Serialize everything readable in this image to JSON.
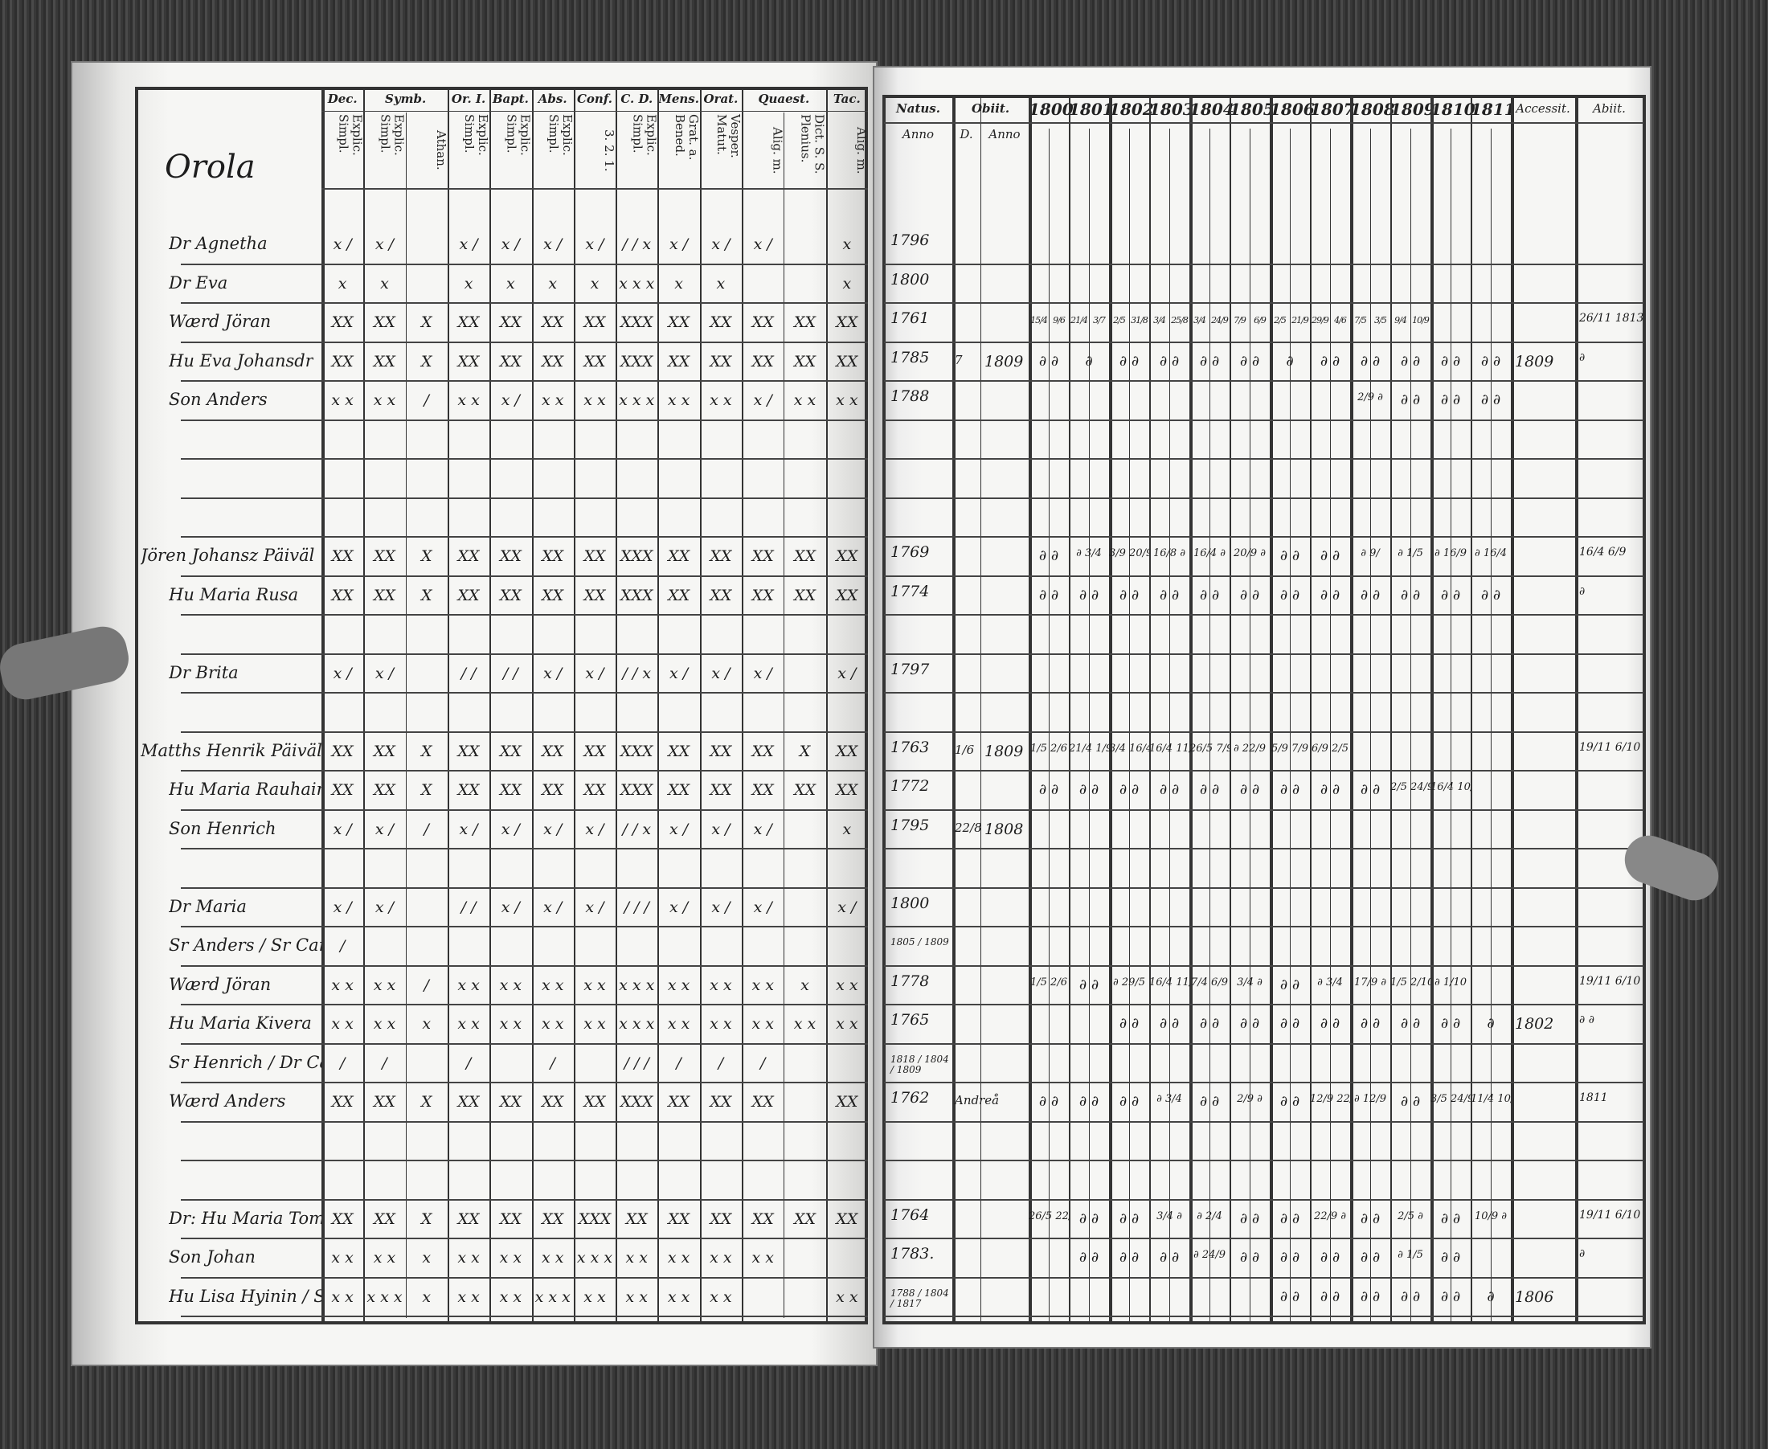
{
  "parish_village": "Orola",
  "left_headers": [
    {
      "group": "Dec.",
      "subs": [
        "Explic. Simpl."
      ]
    },
    {
      "group": "Symb.",
      "subs": [
        "Explic. Simpl.",
        "Athan."
      ]
    },
    {
      "group": "Or. I.",
      "subs": [
        "Explic. Simpl."
      ]
    },
    {
      "group": "Bapt.",
      "subs": [
        "Explic. Simpl."
      ]
    },
    {
      "group": "Abs.",
      "subs": [
        "Explic. Simpl."
      ]
    },
    {
      "group": "Conf.",
      "subs": [
        "3. 2. 1."
      ]
    },
    {
      "group": "C. D.",
      "subs": [
        "Explic. Simpl."
      ]
    },
    {
      "group": "Mens.",
      "subs": [
        "Grat. a. Bened."
      ]
    },
    {
      "group": "Orat.",
      "subs": [
        "Vesper. Matut."
      ]
    },
    {
      "group": "Quaest.",
      "subs": [
        "Alig. m.",
        "Dict. S. S. Plenius."
      ]
    },
    {
      "group": "Tac.",
      "subs": [
        "Alig. m."
      ]
    }
  ],
  "right_headers": {
    "natus": "Natus.",
    "natus_sub": "Anno",
    "obiit": "Obiit.",
    "obiit_day": "D.",
    "obiit_year": "Anno",
    "years": [
      "1800",
      "1801",
      "1802",
      "1803",
      "1804",
      "1805",
      "1806",
      "1807",
      "1808",
      "1809",
      "1810",
      "1811"
    ],
    "accessit": "Accessit.",
    "abiit": "Abiit."
  },
  "rows": [
    {
      "name": "Dr Agnetha",
      "marks": [
        "x /",
        "x /",
        "",
        "x /",
        "x /",
        "x /",
        "x /",
        "/ / x",
        "x /",
        "x /",
        "x /",
        "",
        "x"
      ],
      "natus": "1796",
      "obiit_d": "",
      "obiit_y": "",
      "years": [
        "",
        "",
        "",
        "",
        "",
        "",
        "",
        "",
        "",
        "",
        "",
        "",
        ""
      ],
      "acc": "",
      "abi": ""
    },
    {
      "name": "Dr Eva",
      "marks": [
        "x",
        "x",
        "",
        "x",
        "x",
        "x",
        "x",
        "x x x",
        "x",
        "x",
        "",
        "",
        "x"
      ],
      "natus": "1800",
      "years": []
    },
    {
      "name": "Wærd Jöran",
      "marks": [
        "XX",
        "XX",
        "X",
        "XX",
        "XX",
        "XX",
        "XX",
        "XXX",
        "XX",
        "XX",
        "XX",
        "XX",
        "XX"
      ],
      "natus": "1761",
      "years": [
        "15/4",
        "9/6",
        "21/4",
        "3/7",
        "2/5",
        "31/8",
        "3/4",
        "25/8",
        "3/4",
        "24/9",
        "7/9",
        "6/9",
        "2/5",
        "21/9",
        "29/9",
        "4/6",
        "7/5",
        "3/5",
        "9/4",
        "10/9"
      ],
      "acc": "",
      "abi": "26/11 1813"
    },
    {
      "name": "Hu Eva Johansdr",
      "marks": [
        "XX",
        "XX",
        "X",
        "XX",
        "XX",
        "XX",
        "XX",
        "XXX",
        "XX",
        "XX",
        "XX",
        "XX",
        "XX"
      ],
      "natus": "1785",
      "obiit_d": "7",
      "obiit_y": "1809",
      "years": [
        "∂ ∂",
        "∂",
        "∂ ∂",
        "∂ ∂",
        "∂ ∂",
        "∂ ∂",
        "∂",
        "∂ ∂",
        "∂ ∂",
        "∂ ∂",
        "∂ ∂",
        "∂ ∂"
      ],
      "acc": "1809",
      "abi": "∂"
    },
    {
      "name": "Son Anders",
      "marks": [
        "x x",
        "x x",
        "/",
        "x x",
        "x /",
        "x x",
        "x x",
        "x x x",
        "x x",
        "x x",
        "x /",
        "x x",
        "x x"
      ],
      "natus": "1788",
      "years": [
        "",
        "",
        "",
        "",
        "",
        "",
        "",
        "",
        "2/9 ∂",
        "∂ ∂",
        "∂ ∂",
        "∂ ∂"
      ]
    },
    {
      "name": "",
      "marks": [],
      "years": []
    },
    {
      "name": "",
      "marks": [],
      "years": []
    },
    {
      "name": "",
      "marks": [],
      "years": []
    },
    {
      "name": "Jören Johansz Päiväl",
      "marks": [
        "XX",
        "XX",
        "X",
        "XX",
        "XX",
        "XX",
        "XX",
        "XXX",
        "XX",
        "XX",
        "XX",
        "XX",
        "XX"
      ],
      "natus": "1769",
      "years": [
        "∂ ∂",
        "∂ 3/4",
        "3/9 20/9",
        "16/8 ∂",
        "16/4 ∂",
        "20/9 ∂",
        "∂ ∂",
        "∂ ∂",
        "∂ 9/",
        "∂ 1/5",
        "∂ 16/9",
        "∂ 16/4"
      ],
      "abi": "16/4 6/9"
    },
    {
      "name": "Hu Maria Rusa",
      "marks": [
        "XX",
        "XX",
        "X",
        "XX",
        "XX",
        "XX",
        "XX",
        "XXX",
        "XX",
        "XX",
        "XX",
        "XX",
        "XX"
      ],
      "natus": "1774",
      "years": [
        "∂ ∂",
        "∂ ∂",
        "∂ ∂",
        "∂ ∂",
        "∂ ∂",
        "∂ ∂",
        "∂ ∂",
        "∂ ∂",
        "∂ ∂",
        "∂ ∂",
        "∂ ∂",
        "∂ ∂"
      ],
      "abi": "∂"
    },
    {
      "name": "",
      "marks": [],
      "years": []
    },
    {
      "name": "Dr Brita",
      "marks": [
        "x /",
        "x /",
        "",
        "/ /",
        "/ /",
        "x /",
        "x /",
        "/ / x",
        "x /",
        "x /",
        "x /",
        "",
        "x /"
      ],
      "natus": "1797",
      "years": []
    },
    {
      "name": "",
      "marks": [],
      "years": []
    },
    {
      "name": "Matths Henrik Päivälä",
      "marks": [
        "XX",
        "XX",
        "X",
        "XX",
        "XX",
        "XX",
        "XX",
        "XXX",
        "XX",
        "XX",
        "XX",
        "X",
        "XX"
      ],
      "natus": "1763",
      "obiit_d": "1/6",
      "obiit_y": "1809",
      "years": [
        "1/5 2/6",
        "21/4 1/9",
        "3/4 16/4",
        "16/4 11/5",
        "26/5 7/9",
        "∂ 22/9",
        "5/9 7/9",
        "6/9 2/5",
        "",
        "",
        "",
        ""
      ],
      "abi": "19/11 6/10"
    },
    {
      "name": "Hu Maria Rauhain",
      "marks": [
        "XX",
        "XX",
        "X",
        "XX",
        "XX",
        "XX",
        "XX",
        "XXX",
        "XX",
        "XX",
        "XX",
        "XX",
        "XX"
      ],
      "natus": "1772",
      "years": [
        "∂ ∂",
        "∂ ∂",
        "∂ ∂",
        "∂ ∂",
        "∂ ∂",
        "∂ ∂",
        "∂ ∂",
        "∂ ∂",
        "∂ ∂",
        "2/5 24/9",
        "16/4 10/9",
        ""
      ]
    },
    {
      "name": "Son Henrich",
      "marks": [
        "x /",
        "x /",
        "/",
        "x /",
        "x /",
        "x /",
        "x /",
        "/ / x",
        "x /",
        "x /",
        "x /",
        "",
        "x"
      ],
      "natus": "1795",
      "obiit_d": "22/8",
      "obiit_y": "1808",
      "years": []
    },
    {
      "name": "",
      "marks": [],
      "years": []
    },
    {
      "name": "Dr Maria",
      "marks": [
        "x /",
        "x /",
        "",
        "/ /",
        "x /",
        "x /",
        "x /",
        "/ / /",
        "x /",
        "x /",
        "x /",
        "",
        "x /"
      ],
      "natus": "1800",
      "years": []
    },
    {
      "name": "Sr Anders / Sr Carin",
      "marks": [
        "/",
        "",
        "",
        "",
        "",
        "",
        "",
        "",
        "",
        "",
        "",
        "",
        ""
      ],
      "natus": "1805 / 1809",
      "years": []
    },
    {
      "name": "Wærd Jöran",
      "marks": [
        "x x",
        "x x",
        "/",
        "x x",
        "x x",
        "x x",
        "x x",
        "x x x",
        "x x",
        "x x",
        "x x",
        "x",
        "x x"
      ],
      "natus": "1778",
      "years": [
        "1/5 2/6",
        "∂ ∂",
        "∂ 29/5",
        "16/4 11/5",
        "7/4 6/9",
        "3/4 ∂",
        "∂ ∂",
        "∂ 3/4",
        "17/9 ∂",
        "1/5 2/10",
        "∂ 1/10",
        ""
      ],
      "abi": "19/11 6/10"
    },
    {
      "name": "Hu Maria Kivera",
      "marks": [
        "x x",
        "x x",
        "x",
        "x x",
        "x x",
        "x x",
        "x x",
        "x x x",
        "x x",
        "x x",
        "x x",
        "x x",
        "x x"
      ],
      "natus": "1765",
      "years": [
        "",
        "",
        "∂ ∂",
        "∂ ∂",
        "∂ ∂",
        "∂ ∂",
        "∂ ∂",
        "∂ ∂",
        "∂ ∂",
        "∂ ∂",
        "∂ ∂",
        "∂"
      ],
      "acc": "1802",
      "abi": "∂ ∂"
    },
    {
      "name": "Sr Henrich / Dr Carin / Dr Maria",
      "marks": [
        "/",
        "/",
        "",
        "/",
        "",
        "/",
        "",
        "/ / /",
        "/",
        "/",
        "/",
        "",
        ""
      ],
      "natus": "1818 / 1804 / 1809",
      "years": []
    },
    {
      "name": "Wærd Anders",
      "marks": [
        "XX",
        "XX",
        "X",
        "XX",
        "XX",
        "XX",
        "XX",
        "XXX",
        "XX",
        "XX",
        "XX",
        "",
        "XX"
      ],
      "natus": "1762",
      "obiit_d": "Andreå",
      "obiit_y": "",
      "years": [
        "∂ ∂",
        "∂ ∂",
        "∂ ∂",
        "∂ 3/4",
        "∂ ∂",
        "2/9 ∂",
        "∂ ∂",
        "12/9 22/9",
        "∂ 12/9",
        "∂ ∂",
        "3/5 24/9",
        "11/4 10/9"
      ],
      "abi": "1811"
    },
    {
      "name": "",
      "marks": [],
      "years": []
    },
    {
      "name": "",
      "marks": [],
      "years": []
    },
    {
      "name": "Dr: Hu Maria Tomber",
      "marks": [
        "XX",
        "XX",
        "X",
        "XX",
        "XX",
        "XX",
        "XXX",
        "XX",
        "XX",
        "XX",
        "XX",
        "XX",
        "XX"
      ],
      "natus": "1764",
      "years": [
        "26/5 22/9",
        "∂ ∂",
        "∂ ∂",
        "3/4 ∂",
        "∂ 2/4",
        "∂ ∂",
        "∂ ∂",
        "22/9 ∂",
        "∂ ∂",
        "2/5 ∂",
        "∂ ∂",
        "10/9 ∂"
      ],
      "abi": "19/11 6/10"
    },
    {
      "name": "Son Johan",
      "marks": [
        "x x",
        "x x",
        "x",
        "x x",
        "x x",
        "x x",
        "x x x",
        "x x",
        "x x",
        "x x",
        "x x",
        "",
        ""
      ],
      "natus": "1783.",
      "years": [
        "",
        "∂ ∂",
        "∂ ∂",
        "∂ ∂",
        "∂ 24/9",
        "∂ ∂",
        "∂ ∂",
        "∂ ∂",
        "∂ ∂",
        "∂ 1/5",
        "∂ ∂",
        ""
      ],
      "abi": "∂"
    },
    {
      "name": "Hu Lisa Hyinin / Sr Jöran / Dr Malla",
      "marks": [
        "x x",
        "x x x",
        "x",
        "x x",
        "x x",
        "x x x",
        "x x",
        "x x",
        "x x",
        "x x",
        "",
        "",
        "x x"
      ],
      "natus": "1788 / 1804 / 1817",
      "years": [
        "",
        "",
        "",
        "",
        "",
        "",
        "∂ ∂",
        "∂ ∂",
        "∂ ∂",
        "∂ ∂",
        "∂ ∂",
        "∂"
      ],
      "acc": "1806"
    }
  ]
}
